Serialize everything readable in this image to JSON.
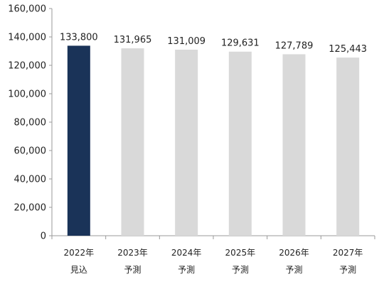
{
  "chart_data": {
    "type": "bar",
    "title": "",
    "xlabel": "",
    "ylabel": "",
    "categories": [
      [
        "2022年",
        "見込"
      ],
      [
        "2023年",
        "予測"
      ],
      [
        "2024年",
        "予測"
      ],
      [
        "2025年",
        "予測"
      ],
      [
        "2026年",
        "予測"
      ],
      [
        "2027年",
        "予測"
      ]
    ],
    "values": [
      133800,
      131965,
      131009,
      129631,
      127789,
      125443
    ],
    "data_labels": [
      "133,800",
      "131,965",
      "131,009",
      "129,631",
      "127,789",
      "125,443"
    ],
    "ylim": [
      0,
      160000
    ],
    "yticks": [
      0,
      20000,
      40000,
      60000,
      80000,
      100000,
      120000,
      140000,
      160000
    ],
    "ytick_labels": [
      "0",
      "20,000",
      "40,000",
      "60,000",
      "80,000",
      "100,000",
      "120,000",
      "140,000",
      "160,000"
    ],
    "grid": false,
    "colors": {
      "highlight": "#1a3358",
      "default": "#d9d9d9",
      "axis": "#9a9a9a"
    },
    "highlight_index": 0
  }
}
